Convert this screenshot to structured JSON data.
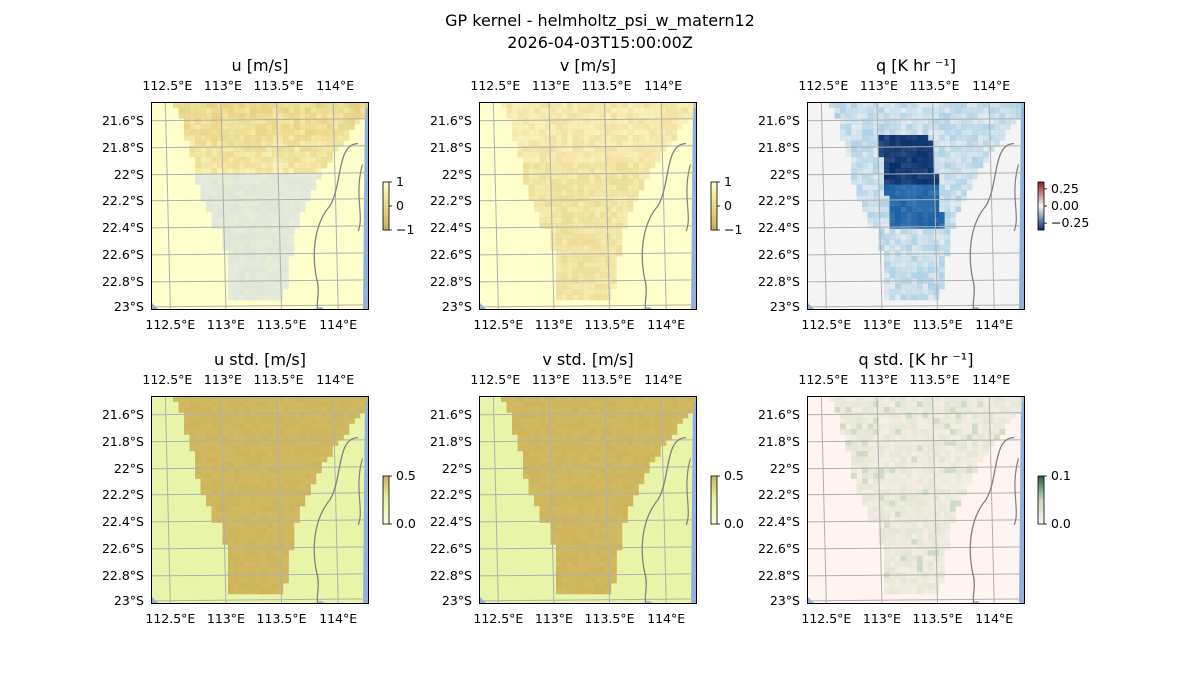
{
  "figure": {
    "title_line1": "GP kernel - helmholtz_psi_w_matern12",
    "title_line2": "2026-04-03T15:00:00Z"
  },
  "chart_data": [
    {
      "type": "heatmap",
      "id": "u",
      "title": "u [m/s]",
      "xticks": [
        "112.5°E",
        "113°E",
        "113.5°E",
        "114°E"
      ],
      "yticks": [
        "21.6°S",
        "21.8°S",
        "22°S",
        "22.2°S",
        "22.4°S",
        "22.6°S",
        "22.8°S",
        "23°S"
      ],
      "colorbar": {
        "ticks": [
          "1",
          "0",
          "−1"
        ],
        "range": [
          -1,
          1
        ]
      },
      "colors": {
        "background": "#ffffcc",
        "field": "#e6cf7c",
        "field2": "#dfe6dc"
      }
    },
    {
      "type": "heatmap",
      "id": "v",
      "title": "v [m/s]",
      "xticks": [
        "112.5°E",
        "113°E",
        "113.5°E",
        "114°E"
      ],
      "yticks": [
        "21.6°S",
        "21.8°S",
        "22°S",
        "22.2°S",
        "22.4°S",
        "22.6°S",
        "22.8°S",
        "23°S"
      ],
      "colorbar": {
        "ticks": [
          "1",
          "0",
          "−1"
        ],
        "range": [
          -1,
          1
        ]
      },
      "colors": {
        "background": "#ffffcc",
        "field": "#f0dc9a",
        "field2": "#e8d58a"
      }
    },
    {
      "type": "heatmap",
      "id": "q",
      "title": "q [K hr ⁻¹]",
      "xticks": [
        "112.5°E",
        "113°E",
        "113.5°E",
        "114°E"
      ],
      "yticks": [
        "21.6°S",
        "21.8°S",
        "22°S",
        "22.2°S",
        "22.4°S",
        "22.6°S",
        "22.8°S",
        "23°S"
      ],
      "colorbar": {
        "ticks": [
          "0.25",
          "0.00",
          "−0.25"
        ],
        "range": [
          -0.35,
          0.35
        ]
      },
      "colors": {
        "background": "#f4f4f4",
        "field": "#1a5fa5",
        "field2": "#9ecae1"
      }
    },
    {
      "type": "heatmap",
      "id": "u_std",
      "title": "u std. [m/s]",
      "xticks": [
        "112.5°E",
        "113°E",
        "113.5°E",
        "114°E"
      ],
      "yticks": [
        "21.6°S",
        "21.8°S",
        "22°S",
        "22.2°S",
        "22.4°S",
        "22.6°S",
        "22.8°S",
        "23°S"
      ],
      "colorbar": {
        "ticks": [
          "0.5",
          "0.0"
        ],
        "range": [
          0,
          0.5
        ]
      },
      "colors": {
        "background": "#e8f5a8",
        "field": "#cdb45a",
        "field2": "#cdb45a"
      }
    },
    {
      "type": "heatmap",
      "id": "v_std",
      "title": "v std. [m/s]",
      "xticks": [
        "112.5°E",
        "113°E",
        "113.5°E",
        "114°E"
      ],
      "yticks": [
        "21.6°S",
        "21.8°S",
        "22°S",
        "22.2°S",
        "22.4°S",
        "22.6°S",
        "22.8°S",
        "23°S"
      ],
      "colorbar": {
        "ticks": [
          "0.5",
          "0.0"
        ],
        "range": [
          0,
          0.5
        ]
      },
      "colors": {
        "background": "#e8f5a8",
        "field": "#cdb45a",
        "field2": "#cdb45a"
      }
    },
    {
      "type": "heatmap",
      "id": "q_std",
      "title": "q std. [K hr ⁻¹]",
      "xticks": [
        "112.5°E",
        "113°E",
        "113.5°E",
        "114°E"
      ],
      "yticks": [
        "21.6°S",
        "21.8°S",
        "22°S",
        "22.2°S",
        "22.4°S",
        "22.6°S",
        "22.8°S",
        "23°S"
      ],
      "colorbar": {
        "ticks": [
          "0.1",
          "0.0"
        ],
        "range": [
          0,
          0.1
        ]
      },
      "colors": {
        "background": "#fff4f0",
        "field": "#dfe3d2",
        "field2": "#c9d8c0"
      }
    }
  ]
}
